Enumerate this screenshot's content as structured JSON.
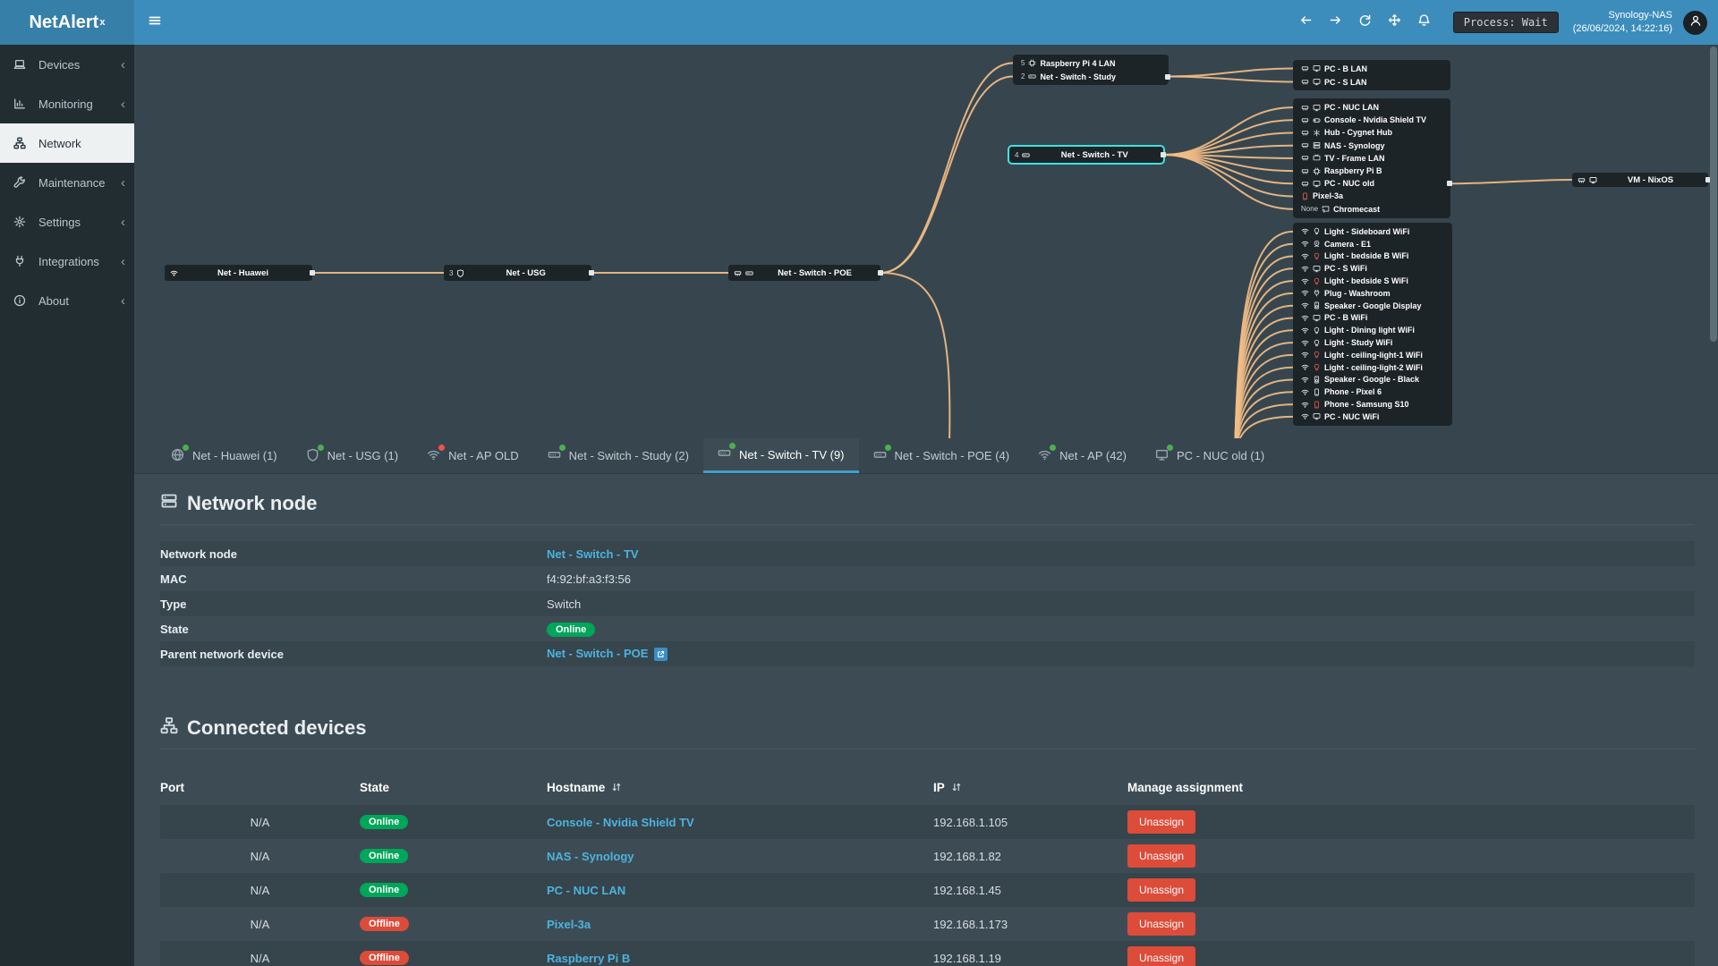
{
  "app": {
    "name": "NetAlert",
    "name_suffix": "x"
  },
  "header": {
    "process_badge": "Process: Wait",
    "server_name": "Synology-NAS",
    "server_time": "(26/06/2024, 14:22:16)",
    "nav_icons": [
      "arrow-left",
      "arrow-right",
      "refresh",
      "move",
      "bell"
    ]
  },
  "sidebar": {
    "items": [
      {
        "id": "devices",
        "label": "Devices",
        "icon": "laptop",
        "active": false
      },
      {
        "id": "monitoring",
        "label": "Monitoring",
        "icon": "chart",
        "active": false
      },
      {
        "id": "network",
        "label": "Network",
        "icon": "sitemap",
        "active": true
      },
      {
        "id": "maintenance",
        "label": "Maintenance",
        "icon": "wrench",
        "active": false
      },
      {
        "id": "settings",
        "label": "Settings",
        "icon": "gear",
        "active": false
      },
      {
        "id": "integrations",
        "label": "Integrations",
        "icon": "plug",
        "active": false
      },
      {
        "id": "about",
        "label": "About",
        "icon": "info",
        "active": false
      }
    ]
  },
  "topology": {
    "nodes": [
      {
        "id": "huawei",
        "label": "Net - Huawei",
        "icons": [
          "wifi"
        ],
        "count": "",
        "selected": false
      },
      {
        "id": "usg",
        "label": "Net - USG",
        "icons": [
          "shield"
        ],
        "count": "3",
        "selected": false
      },
      {
        "id": "poe",
        "label": "Net - Switch - POE",
        "icons": [
          "eth",
          "switch"
        ],
        "count": "",
        "selected": false
      },
      {
        "id": "tv",
        "label": "Net - Switch - TV",
        "icons": [
          "switch"
        ],
        "count": "4",
        "selected": true
      },
      {
        "id": "vm",
        "label": "VM - NixOS",
        "icons": [
          "eth",
          "monitor"
        ],
        "count": "",
        "selected": false
      }
    ],
    "groups": {
      "combo": [
        {
          "count": "5",
          "icons": [
            "chip"
          ],
          "label": "Raspberry Pi 4 LAN"
        },
        {
          "count": "2",
          "icons": [
            "switch"
          ],
          "label": "Net - Switch - Study",
          "port": true
        }
      ],
      "boxA": [
        {
          "icons": [
            "eth",
            "monitor"
          ],
          "label": "PC - B LAN"
        },
        {
          "icons": [
            "eth",
            "monitor"
          ],
          "label": "PC - S LAN"
        }
      ],
      "boxB": [
        {
          "icons": [
            "eth",
            "monitor"
          ],
          "label": "PC - NUC LAN"
        },
        {
          "icons": [
            "eth",
            "gamepad"
          ],
          "label": "Console - Nvidia Shield TV"
        },
        {
          "icons": [
            "eth",
            "hub"
          ],
          "label": "Hub - Cygnet Hub"
        },
        {
          "icons": [
            "eth",
            "nas"
          ],
          "label": "NAS - Synology"
        },
        {
          "icons": [
            "eth",
            "tv"
          ],
          "label": "TV - Frame LAN"
        },
        {
          "icons": [
            "eth",
            "chip"
          ],
          "label": "Raspberry Pi B"
        },
        {
          "icons": [
            "eth",
            "monitor"
          ],
          "label": "PC - NUC old",
          "port": true
        },
        {
          "icons": [
            "phone"
          ],
          "label": "Pixel-3a",
          "offline": true
        },
        {
          "prefix": "None",
          "icons": [
            "cast"
          ],
          "label": "Chromecast"
        }
      ],
      "wifi": [
        {
          "icons": [
            "wifi",
            "bulb"
          ],
          "label": "Light - Sideboard WiFi"
        },
        {
          "icons": [
            "wifi",
            "camera"
          ],
          "label": "Camera - E1"
        },
        {
          "icons": [
            "wifi",
            "bulb"
          ],
          "label": "Light - bedside B WiFi",
          "offline": true
        },
        {
          "icons": [
            "wifi",
            "monitor"
          ],
          "label": "PC - S WiFi"
        },
        {
          "icons": [
            "wifi",
            "bulb"
          ],
          "label": "Light - bedside S WiFi",
          "offline": true
        },
        {
          "icons": [
            "wifi",
            "plug"
          ],
          "label": "Plug - Washroom"
        },
        {
          "icons": [
            "wifi",
            "speaker"
          ],
          "label": "Speaker - Google Display"
        },
        {
          "icons": [
            "wifi",
            "monitor"
          ],
          "label": "PC - B WiFi"
        },
        {
          "icons": [
            "wifi",
            "bulb"
          ],
          "label": "Light - Dining light WiFi"
        },
        {
          "icons": [
            "wifi",
            "bulb"
          ],
          "label": "Light - Study WiFi"
        },
        {
          "icons": [
            "wifi",
            "bulb"
          ],
          "label": "Light - ceiling-light-1 WiFi",
          "offline": true
        },
        {
          "icons": [
            "wifi",
            "bulb"
          ],
          "label": "Light - ceiling-light-2 WiFi",
          "offline": true
        },
        {
          "icons": [
            "wifi",
            "speaker"
          ],
          "label": "Speaker - Google - Black"
        },
        {
          "icons": [
            "wifi",
            "phone"
          ],
          "label": "Phone - Pixel 6"
        },
        {
          "icons": [
            "wifi",
            "phone"
          ],
          "label": "Phone - Samsung S10",
          "offline": true
        },
        {
          "icons": [
            "wifi",
            "monitor"
          ],
          "label": "PC - NUC WiFi"
        }
      ]
    }
  },
  "tabs": [
    {
      "label": "Net - Huawei (1)",
      "icon": "globe",
      "dot": "green",
      "active": false
    },
    {
      "label": "Net - USG (1)",
      "icon": "shield",
      "dot": "green",
      "active": false
    },
    {
      "label": "Net - AP OLD",
      "icon": "wifi",
      "dot": "red",
      "active": false
    },
    {
      "label": "Net - Switch - Study (2)",
      "icon": "switch",
      "dot": "green",
      "active": false
    },
    {
      "label": "Net - Switch - TV (9)",
      "icon": "switch",
      "dot": "green",
      "active": true
    },
    {
      "label": "Net - Switch - POE (4)",
      "icon": "switch",
      "dot": "green",
      "active": false
    },
    {
      "label": "Net - AP (42)",
      "icon": "wifi",
      "dot": "green",
      "active": false
    },
    {
      "label": "PC - NUC old (1)",
      "icon": "monitor",
      "dot": "green",
      "active": false
    }
  ],
  "node_panel": {
    "heading": "Network node",
    "heading_icon": "nas",
    "fields": [
      {
        "label": "Network node",
        "value": "Net - Switch - TV",
        "type": "link"
      },
      {
        "label": "MAC",
        "value": "f4:92:bf:a3:f3:56",
        "type": "text"
      },
      {
        "label": "Type",
        "value": "Switch",
        "type": "text"
      },
      {
        "label": "State",
        "value": "Online",
        "type": "badge"
      },
      {
        "label": "Parent network device",
        "value": "Net - Switch - POE",
        "type": "link-ext"
      }
    ]
  },
  "devices_panel": {
    "heading": "Connected devices",
    "heading_icon": "sitemap",
    "columns": [
      {
        "label": "Port",
        "sortable": false
      },
      {
        "label": "State",
        "sortable": false
      },
      {
        "label": "Hostname",
        "sortable": true
      },
      {
        "label": "IP",
        "sortable": true
      },
      {
        "label": "Manage assignment",
        "sortable": false
      }
    ],
    "rows": [
      {
        "port": "N/A",
        "state": "Online",
        "hostname": "Console - Nvidia Shield TV",
        "ip": "192.168.1.105",
        "action": "Unassign"
      },
      {
        "port": "N/A",
        "state": "Online",
        "hostname": "NAS - Synology",
        "ip": "192.168.1.82",
        "action": "Unassign"
      },
      {
        "port": "N/A",
        "state": "Online",
        "hostname": "PC - NUC LAN",
        "ip": "192.168.1.45",
        "action": "Unassign"
      },
      {
        "port": "N/A",
        "state": "Offline",
        "hostname": "Pixel-3a",
        "ip": "192.168.1.173",
        "action": "Unassign"
      },
      {
        "port": "N/A",
        "state": "Offline",
        "hostname": "Raspberry Pi B",
        "ip": "192.168.1.19",
        "action": "Unassign"
      }
    ]
  },
  "colors": {
    "accent": "#3c8dbc",
    "online": "#00a65a",
    "offline": "#dd4b39",
    "link": "#4cb3e0",
    "edge": "#f2bd85",
    "selected_outline": "#3be3e3",
    "tab_dot_green": "#4caf50",
    "tab_dot_red": "#ef5350"
  }
}
